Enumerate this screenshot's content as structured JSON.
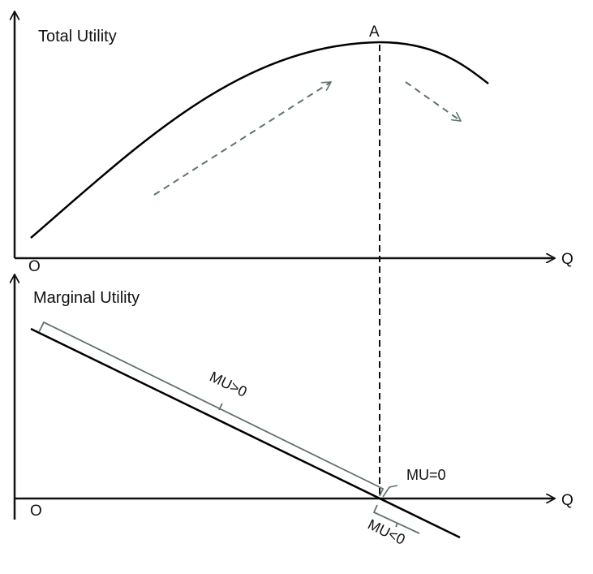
{
  "top_panel": {
    "title": "Total Utility",
    "origin_label": "O",
    "x_axis_label": "Q",
    "peak_label": "A"
  },
  "bottom_panel": {
    "title": "Marginal Utility",
    "origin_label": "O",
    "x_axis_label": "Q",
    "positive_region_label": "MU>0",
    "zero_point_label": "MU=0",
    "negative_region_label": "MU<0"
  },
  "colors": {
    "curve": "#000000",
    "axis": "#111111",
    "dashed_arrow": "#5f7270",
    "bracket": "#5f7270"
  }
}
